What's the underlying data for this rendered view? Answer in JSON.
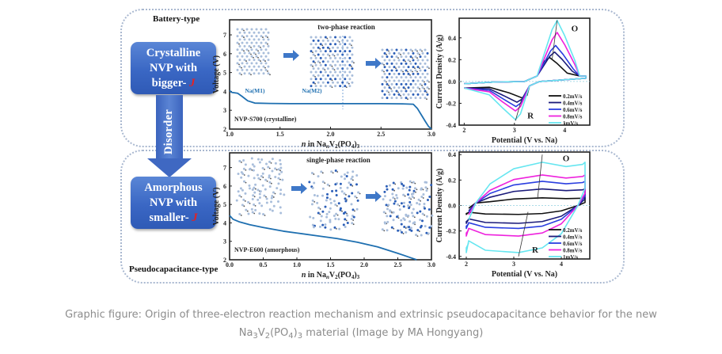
{
  "panels": {
    "top": {
      "label": "Battery-type"
    },
    "bottom": {
      "label": "Pseudocapacitance-type"
    }
  },
  "boxes": {
    "crystalline": {
      "line1": "Crystalline",
      "line2": "NVP with",
      "line3": "bigger-",
      "symbol": "J"
    },
    "amorphous": {
      "line1": "Amorphous",
      "line2": "NVP with",
      "line3": "smaller-",
      "symbol": "J"
    }
  },
  "arrow": {
    "label": "Disorder"
  },
  "colors": {
    "box_blue": "#3a67c4",
    "accent_red": "#e52222",
    "curve_blue": "#1e6fb0",
    "caption_grey": "#8c8c8c"
  },
  "chart_data": [
    {
      "id": "voltage-crystalline",
      "type": "line",
      "title": "two-phase reaction",
      "annotation": "NVP-S700 (crystalline)",
      "site_labels": [
        "Na(M1)",
        "Na(M2)"
      ],
      "xlabel": "n in NanV2(PO4)3",
      "ylabel": "Voltage (V)",
      "xlim": [
        1.0,
        3.0
      ],
      "ylim": [
        2,
        7.8
      ],
      "xticks": [
        "1.0",
        "1.5",
        "2.0",
        "2.5",
        "3.0"
      ],
      "yticks": [
        "2",
        "3",
        "4",
        "5",
        "6",
        "7"
      ],
      "series": [
        {
          "name": "NVP-S700",
          "color": "#1e6fb0",
          "x": [
            1.0,
            1.02,
            1.08,
            1.12,
            1.18,
            1.25,
            1.4,
            1.6,
            1.96,
            2.2,
            2.5,
            2.7,
            2.82,
            2.86,
            2.9,
            2.94,
            2.97,
            3.0
          ],
          "y": [
            4.05,
            3.95,
            3.9,
            3.75,
            3.5,
            3.38,
            3.36,
            3.35,
            3.35,
            3.35,
            3.35,
            3.34,
            3.32,
            3.1,
            2.75,
            2.4,
            2.15,
            1.95
          ]
        }
      ]
    },
    {
      "id": "cv-crystalline",
      "type": "line",
      "xlabel": "Potential (V vs. Na)",
      "ylabel": "Current Density (A/g)",
      "xlim": [
        1.9,
        4.5
      ],
      "ylim": [
        -0.4,
        0.58
      ],
      "xticks": [
        "2",
        "3",
        "4"
      ],
      "yticks": [
        "-0.4",
        "-0.2",
        "0.0",
        "0.2",
        "0.4"
      ],
      "peak_labels": [
        "O",
        "R"
      ],
      "legend": [
        "0.2mV/s",
        "0.4mV/s",
        "0.6mV/s",
        "0.8mV/s",
        "1mV/s"
      ],
      "legend_position": "bottom-right",
      "series": [
        {
          "name": "0.2mV/s",
          "color": "#111111",
          "ox_peak": [
            3.7,
            0.22
          ],
          "red_peak": [
            3.15,
            -0.15
          ]
        },
        {
          "name": "0.4mV/s",
          "color": "#1a1a7a",
          "ox_peak": [
            3.8,
            0.27
          ],
          "red_peak": [
            3.05,
            -0.19
          ]
        },
        {
          "name": "0.6mV/s",
          "color": "#2a3ee0",
          "ox_peak": [
            3.82,
            0.33
          ],
          "red_peak": [
            3.03,
            -0.23
          ]
        },
        {
          "name": "0.8mV/s",
          "color": "#ee22dd",
          "ox_peak": [
            3.85,
            0.45
          ],
          "red_peak": [
            3.02,
            -0.27
          ]
        },
        {
          "name": "1mV/s",
          "color": "#66e6f0",
          "ox_peak": [
            3.85,
            0.56
          ],
          "red_peak": [
            3.02,
            -0.35
          ]
        }
      ]
    },
    {
      "id": "voltage-amorphous",
      "type": "line",
      "title": "single-phase reaction",
      "annotation": "NVP-E600 (amorphous)",
      "xlabel": "n in NanV2(PO4)3",
      "ylabel": "Voltage (V)",
      "xlim": [
        0.0,
        3.0
      ],
      "ylim": [
        2,
        7.8
      ],
      "xticks": [
        "0.0",
        "0.5",
        "1.0",
        "1.5",
        "2.0",
        "2.5",
        "3.0"
      ],
      "yticks": [
        "2",
        "3",
        "4",
        "5",
        "6",
        "7"
      ],
      "series": [
        {
          "name": "NVP-E600",
          "color": "#1e6fb0",
          "x": [
            0.0,
            0.05,
            0.15,
            0.3,
            0.5,
            0.8,
            1.0,
            1.3,
            1.6,
            1.9,
            2.2,
            2.5,
            2.7,
            2.78
          ],
          "y": [
            4.4,
            4.2,
            4.05,
            3.9,
            3.75,
            3.55,
            3.45,
            3.3,
            3.15,
            2.95,
            2.7,
            2.35,
            2.1,
            2.0
          ]
        }
      ]
    },
    {
      "id": "cv-amorphous",
      "type": "line",
      "xlabel": "Potential (V vs. Na)",
      "ylabel": "Current Density (A/g)",
      "xlim": [
        1.85,
        4.6
      ],
      "ylim": [
        -0.42,
        0.42
      ],
      "xticks": [
        "2",
        "3",
        "4"
      ],
      "yticks": [
        "-0.4",
        "-0.2",
        "0.0",
        "0.2",
        "0.4"
      ],
      "peak_labels": [
        "O",
        "R"
      ],
      "legend": [
        "0.2mV/s",
        "0.4mV/s",
        "0.6mV/s",
        "0.8mV/s",
        "1mV/s"
      ],
      "legend_position": "bottom-right",
      "series": [
        {
          "name": "0.2mV/s",
          "color": "#111111",
          "upper": 0.06,
          "lower": -0.07
        },
        {
          "name": "0.4mV/s",
          "color": "#1a1a7a",
          "upper": 0.13,
          "lower": -0.14
        },
        {
          "name": "0.6mV/s",
          "color": "#2a3ee0",
          "upper": 0.19,
          "lower": -0.18
        },
        {
          "name": "0.8mV/s",
          "color": "#ee22dd",
          "upper": 0.24,
          "lower": -0.24
        },
        {
          "name": "1mV/s",
          "color": "#66e6f0",
          "upper": 0.34,
          "lower": -0.37
        }
      ]
    }
  ],
  "caption": {
    "line1": "Graphic figure: Origin of three-electron reaction mechanism and extrinsic pseudocapacitance behavior for the new",
    "formula": {
      "a": "Na",
      "a_sub": "3",
      "b": "V",
      "b_sub": "2",
      "c": "(PO",
      "c_sub": "4",
      "d": ")",
      "d_sub": "3"
    },
    "line2_rest": " material (Image by MA Hongyang)"
  }
}
